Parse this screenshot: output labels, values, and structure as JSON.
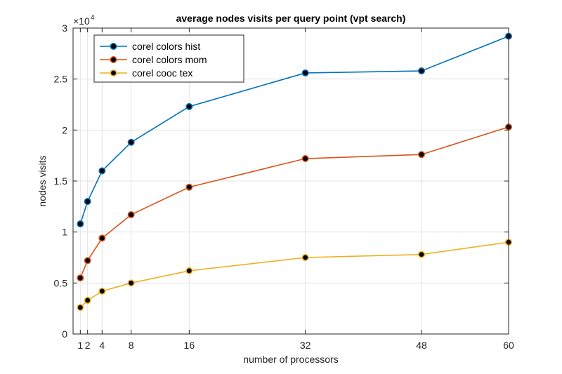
{
  "chart_data": {
    "type": "line",
    "title": "average nodes visits per query point (vpt search)",
    "xlabel": "number of processors",
    "ylabel": "nodes visits",
    "x": [
      1,
      2,
      4,
      8,
      16,
      32,
      48,
      60
    ],
    "xticks": [
      1,
      2,
      4,
      8,
      16,
      32,
      48,
      60
    ],
    "xtick_labels": [
      "1",
      "2",
      "4",
      "8",
      "16",
      "32",
      "48",
      "60"
    ],
    "xlim": [
      0,
      60
    ],
    "ylim": [
      0,
      30000
    ],
    "yticks": [
      0,
      5000,
      10000,
      15000,
      20000,
      25000,
      30000
    ],
    "ytick_labels": [
      "0",
      "0.5",
      "1",
      "1.5",
      "2",
      "2.5",
      "3"
    ],
    "y_exponent_label": {
      "base": "×10",
      "exp": "4"
    },
    "grid": true,
    "legend_position": "top-left",
    "series": [
      {
        "name": "corel colors hist",
        "color": "#0072BD",
        "values": [
          10800,
          13000,
          16000,
          18800,
          22300,
          25600,
          25800,
          29200
        ]
      },
      {
        "name": "corel colors mom",
        "color": "#D95319",
        "values": [
          5500,
          7200,
          9400,
          11700,
          14400,
          17200,
          17600,
          20300
        ]
      },
      {
        "name": "corel cooc tex",
        "color": "#EDB120",
        "values": [
          2600,
          3300,
          4200,
          5000,
          6200,
          7500,
          7800,
          9000
        ]
      }
    ]
  }
}
